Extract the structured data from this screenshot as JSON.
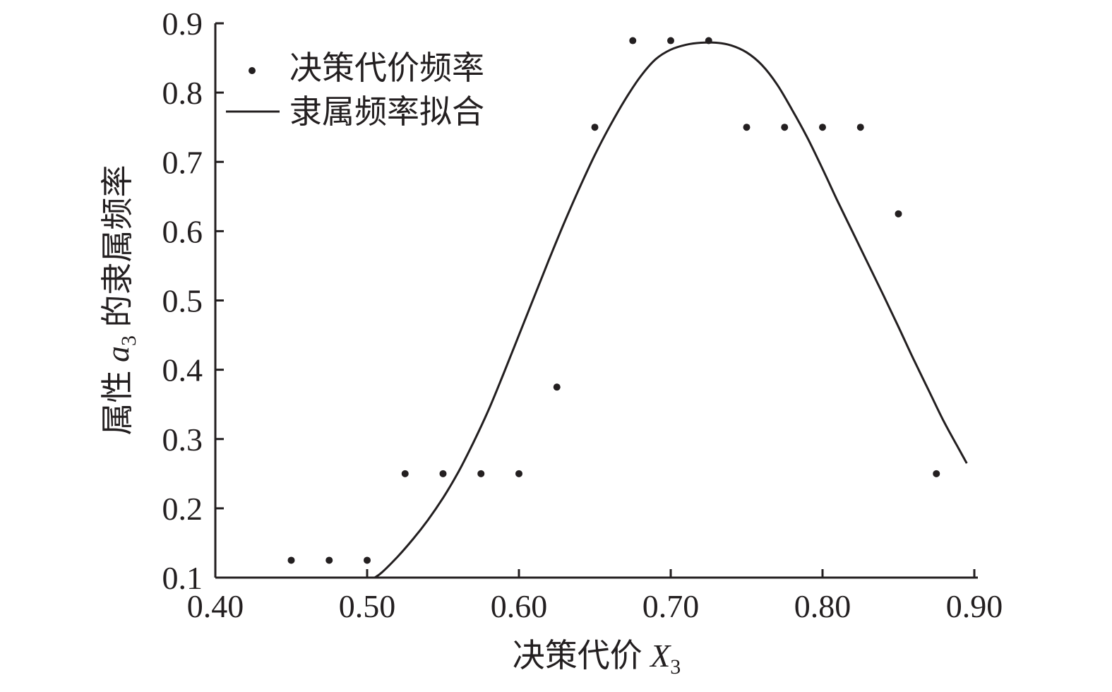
{
  "chart_data": {
    "type": "scatter",
    "title": "",
    "xlabel": "决策代价 X3",
    "xlabel_main": "决策代价 ",
    "xlabel_var": "X",
    "xlabel_sub": "3",
    "ylabel": "属性 a3 的隶属频率",
    "ylabel_pre": "属性 ",
    "ylabel_var": "a",
    "ylabel_sub": "3",
    "ylabel_post": " 的隶属频率",
    "xlim": [
      0.4,
      0.9
    ],
    "ylim": [
      0.1,
      0.9
    ],
    "x_ticks": [
      0.4,
      0.5,
      0.6,
      0.7,
      0.8,
      0.9
    ],
    "x_tick_labels": [
      "0.40",
      "0.50",
      "0.60",
      "0.70",
      "0.80",
      "0.90"
    ],
    "y_ticks": [
      0.1,
      0.2,
      0.3,
      0.4,
      0.5,
      0.6,
      0.7,
      0.8,
      0.9
    ],
    "y_tick_labels": [
      "0.1",
      "0.2",
      "0.3",
      "0.4",
      "0.5",
      "0.6",
      "0.7",
      "0.8",
      "0.9"
    ],
    "grid": false,
    "legend_position": "top-left",
    "series": [
      {
        "name": "决策代价频率",
        "kind": "scatter",
        "color": "#231f20",
        "points": [
          [
            0.45,
            0.125
          ],
          [
            0.475,
            0.125
          ],
          [
            0.5,
            0.125
          ],
          [
            0.525,
            0.25
          ],
          [
            0.55,
            0.25
          ],
          [
            0.575,
            0.25
          ],
          [
            0.6,
            0.25
          ],
          [
            0.625,
            0.375
          ],
          [
            0.65,
            0.75
          ],
          [
            0.675,
            0.875
          ],
          [
            0.7,
            0.875
          ],
          [
            0.725,
            0.875
          ],
          [
            0.75,
            0.75
          ],
          [
            0.775,
            0.75
          ],
          [
            0.8,
            0.75
          ],
          [
            0.825,
            0.75
          ],
          [
            0.85,
            0.625
          ],
          [
            0.875,
            0.25
          ]
        ]
      },
      {
        "name": "隶属频率拟合",
        "kind": "line",
        "color": "#231f20",
        "points": [
          [
            0.505,
            0.1
          ],
          [
            0.51,
            0.108
          ],
          [
            0.52,
            0.13
          ],
          [
            0.53,
            0.155
          ],
          [
            0.54,
            0.183
          ],
          [
            0.55,
            0.215
          ],
          [
            0.56,
            0.252
          ],
          [
            0.57,
            0.295
          ],
          [
            0.58,
            0.342
          ],
          [
            0.59,
            0.395
          ],
          [
            0.6,
            0.45
          ],
          [
            0.61,
            0.505
          ],
          [
            0.62,
            0.56
          ],
          [
            0.63,
            0.613
          ],
          [
            0.64,
            0.663
          ],
          [
            0.65,
            0.71
          ],
          [
            0.66,
            0.752
          ],
          [
            0.67,
            0.79
          ],
          [
            0.68,
            0.823
          ],
          [
            0.69,
            0.848
          ],
          [
            0.7,
            0.862
          ],
          [
            0.71,
            0.869
          ],
          [
            0.72,
            0.872
          ],
          [
            0.73,
            0.872
          ],
          [
            0.74,
            0.868
          ],
          [
            0.75,
            0.858
          ],
          [
            0.76,
            0.84
          ],
          [
            0.77,
            0.812
          ],
          [
            0.78,
            0.775
          ],
          [
            0.79,
            0.735
          ],
          [
            0.8,
            0.69
          ],
          [
            0.81,
            0.643
          ],
          [
            0.82,
            0.598
          ],
          [
            0.83,
            0.553
          ],
          [
            0.84,
            0.508
          ],
          [
            0.85,
            0.462
          ],
          [
            0.86,
            0.415
          ],
          [
            0.87,
            0.37
          ],
          [
            0.88,
            0.325
          ],
          [
            0.89,
            0.285
          ],
          [
            0.895,
            0.265
          ]
        ]
      }
    ]
  }
}
